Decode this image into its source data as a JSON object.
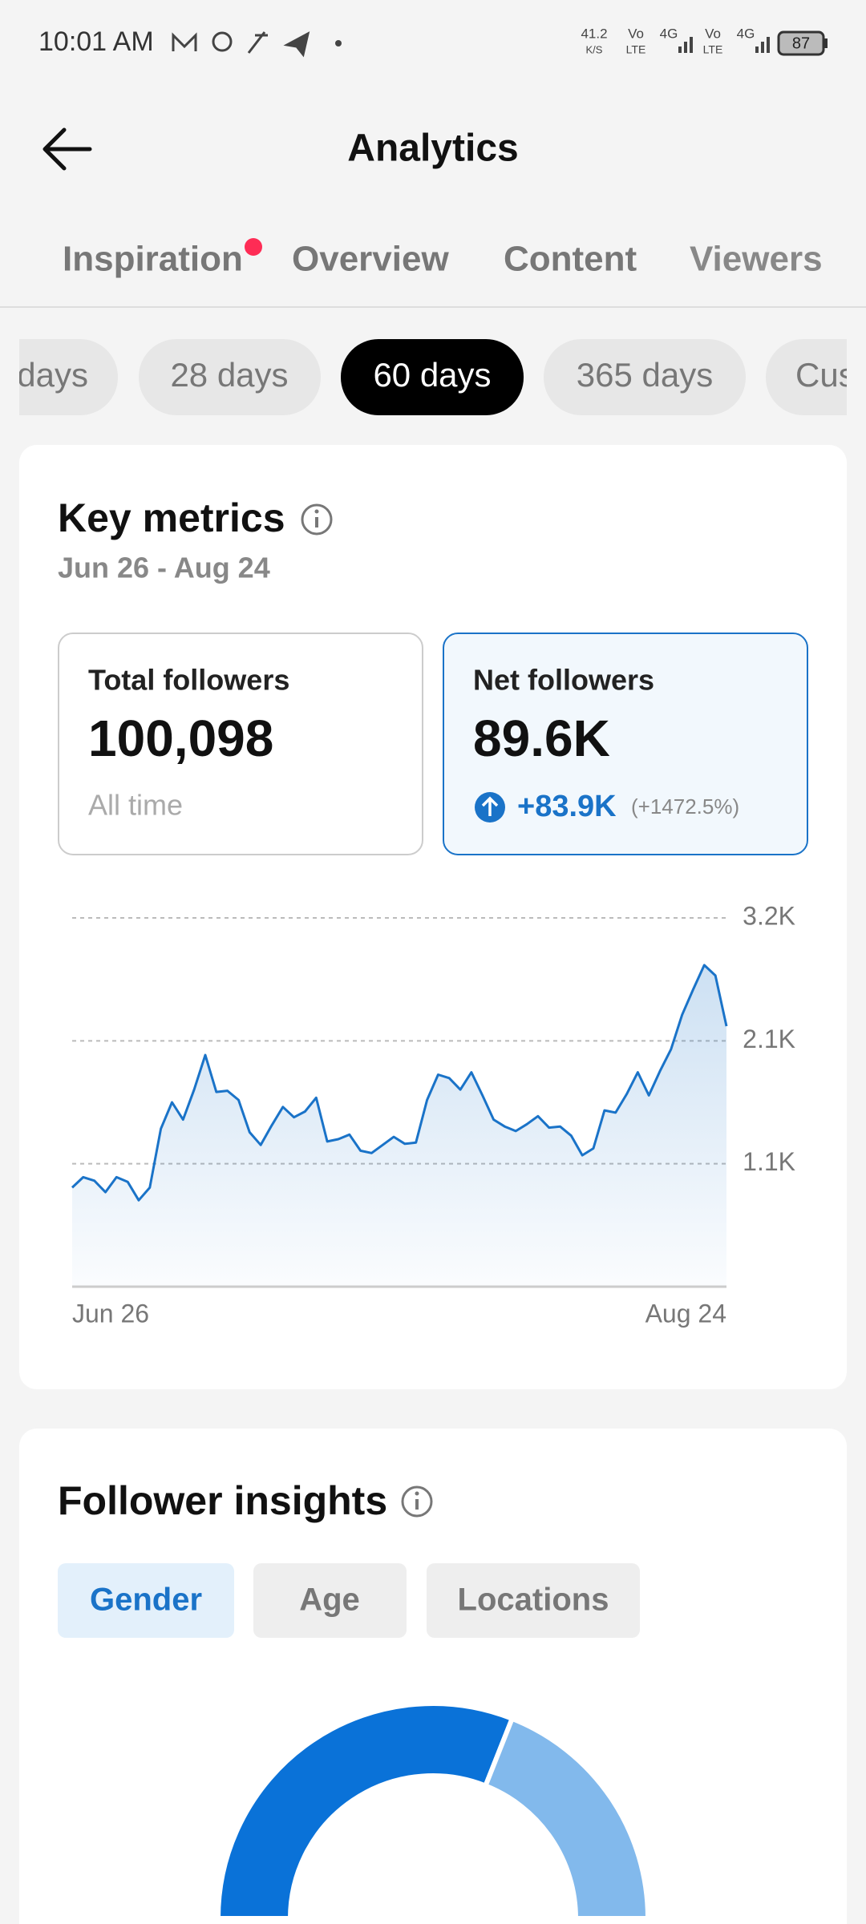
{
  "status_bar": {
    "time": "10:01 AM",
    "speed": "41.2",
    "speed_unit": "K/S",
    "network": [
      "Vo",
      "LTE",
      "4G",
      "Vo",
      "LTE",
      "4G"
    ],
    "battery": "87"
  },
  "header": {
    "title": "Analytics"
  },
  "tabs": [
    "Inspiration",
    "Overview",
    "Content",
    "Viewers"
  ],
  "ranges": [
    "days",
    "28 days",
    "60 days",
    "365 days",
    "Cus"
  ],
  "key_metrics": {
    "title": "Key metrics",
    "date_range": "Jun 26 - Aug 24",
    "total": {
      "label": "Total followers",
      "value": "100,098",
      "sub": "All time"
    },
    "net": {
      "label": "Net followers",
      "value": "89.6K",
      "change": "+83.9K",
      "change_pct": "(+1472.5%)"
    }
  },
  "insights": {
    "title": "Follower insights",
    "tabs": [
      "Gender",
      "Age",
      "Locations"
    ]
  },
  "chart_data": [
    {
      "type": "area",
      "color": "#1a73c8",
      "categories": [
        "Jun 26",
        null,
        null,
        null,
        null,
        null,
        null,
        null,
        null,
        null,
        null,
        null,
        null,
        null,
        null,
        null,
        null,
        null,
        null,
        null,
        null,
        null,
        null,
        null,
        null,
        null,
        null,
        null,
        null,
        null,
        null,
        null,
        null,
        null,
        null,
        null,
        null,
        null,
        null,
        null,
        null,
        null,
        null,
        null,
        null,
        null,
        null,
        null,
        null,
        null,
        null,
        null,
        null,
        null,
        null,
        null,
        null,
        null,
        null,
        "Aug 24"
      ],
      "values": [
        860,
        950,
        920,
        820,
        950,
        910,
        750,
        860,
        1370,
        1600,
        1450,
        1710,
        2010,
        1690,
        1700,
        1620,
        1340,
        1230,
        1400,
        1560,
        1470,
        1520,
        1640,
        1260,
        1280,
        1320,
        1180,
        1160,
        1230,
        1300,
        1240,
        1250,
        1620,
        1840,
        1810,
        1710,
        1860,
        1660,
        1450,
        1390,
        1350,
        1410,
        1480,
        1380,
        1390,
        1310,
        1140,
        1200,
        1530,
        1510,
        1670,
        1860,
        1660,
        1870,
        2060,
        2360,
        2580,
        2790,
        2700,
        2260
      ],
      "ylim": [
        0,
        3200
      ],
      "yticks": [
        {
          "value": 1067,
          "label": "1.1K"
        },
        {
          "value": 2133,
          "label": "2.1K"
        },
        {
          "value": 3200,
          "label": "3.2K"
        }
      ],
      "grid": true
    },
    {
      "type": "pie",
      "values": [
        62,
        38
      ],
      "colors": [
        "#0a72d8",
        "#82b9ec"
      ]
    }
  ]
}
